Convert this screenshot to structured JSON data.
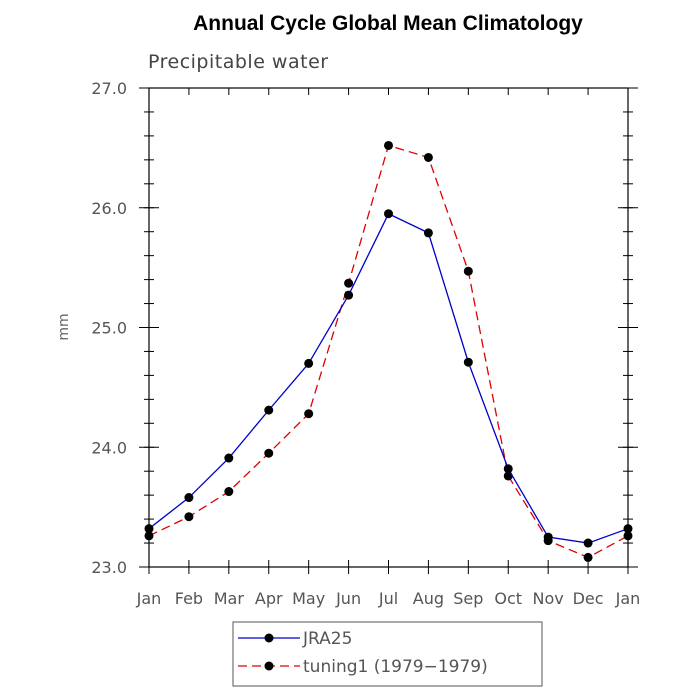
{
  "chart_data": {
    "type": "line",
    "title": "Annual Cycle Global Mean Climatology",
    "subtitle": "Precipitable water",
    "xlabel": "",
    "ylabel": "mm",
    "categories": [
      "Jan",
      "Feb",
      "Mar",
      "Apr",
      "May",
      "Jun",
      "Jul",
      "Aug",
      "Sep",
      "Oct",
      "Nov",
      "Dec",
      "Jan"
    ],
    "ylim": [
      23.0,
      27.0
    ],
    "yticks": [
      "23.0",
      "24.0",
      "25.0",
      "26.0",
      "27.0"
    ],
    "grid": false,
    "legend_position": "bottom-center",
    "series": [
      {
        "name": "JRA25",
        "color": "#0000cc",
        "dash": "solid",
        "values": [
          23.32,
          23.58,
          23.91,
          24.31,
          24.7,
          25.27,
          25.95,
          25.79,
          24.71,
          23.82,
          23.25,
          23.2,
          23.32
        ]
      },
      {
        "name": "tuning1 (1979−1979)",
        "color": "#e00000",
        "dash": "dashed",
        "values": [
          23.26,
          23.42,
          23.63,
          23.95,
          24.28,
          25.37,
          26.52,
          26.42,
          25.47,
          23.76,
          23.22,
          23.08,
          23.26
        ]
      }
    ]
  }
}
